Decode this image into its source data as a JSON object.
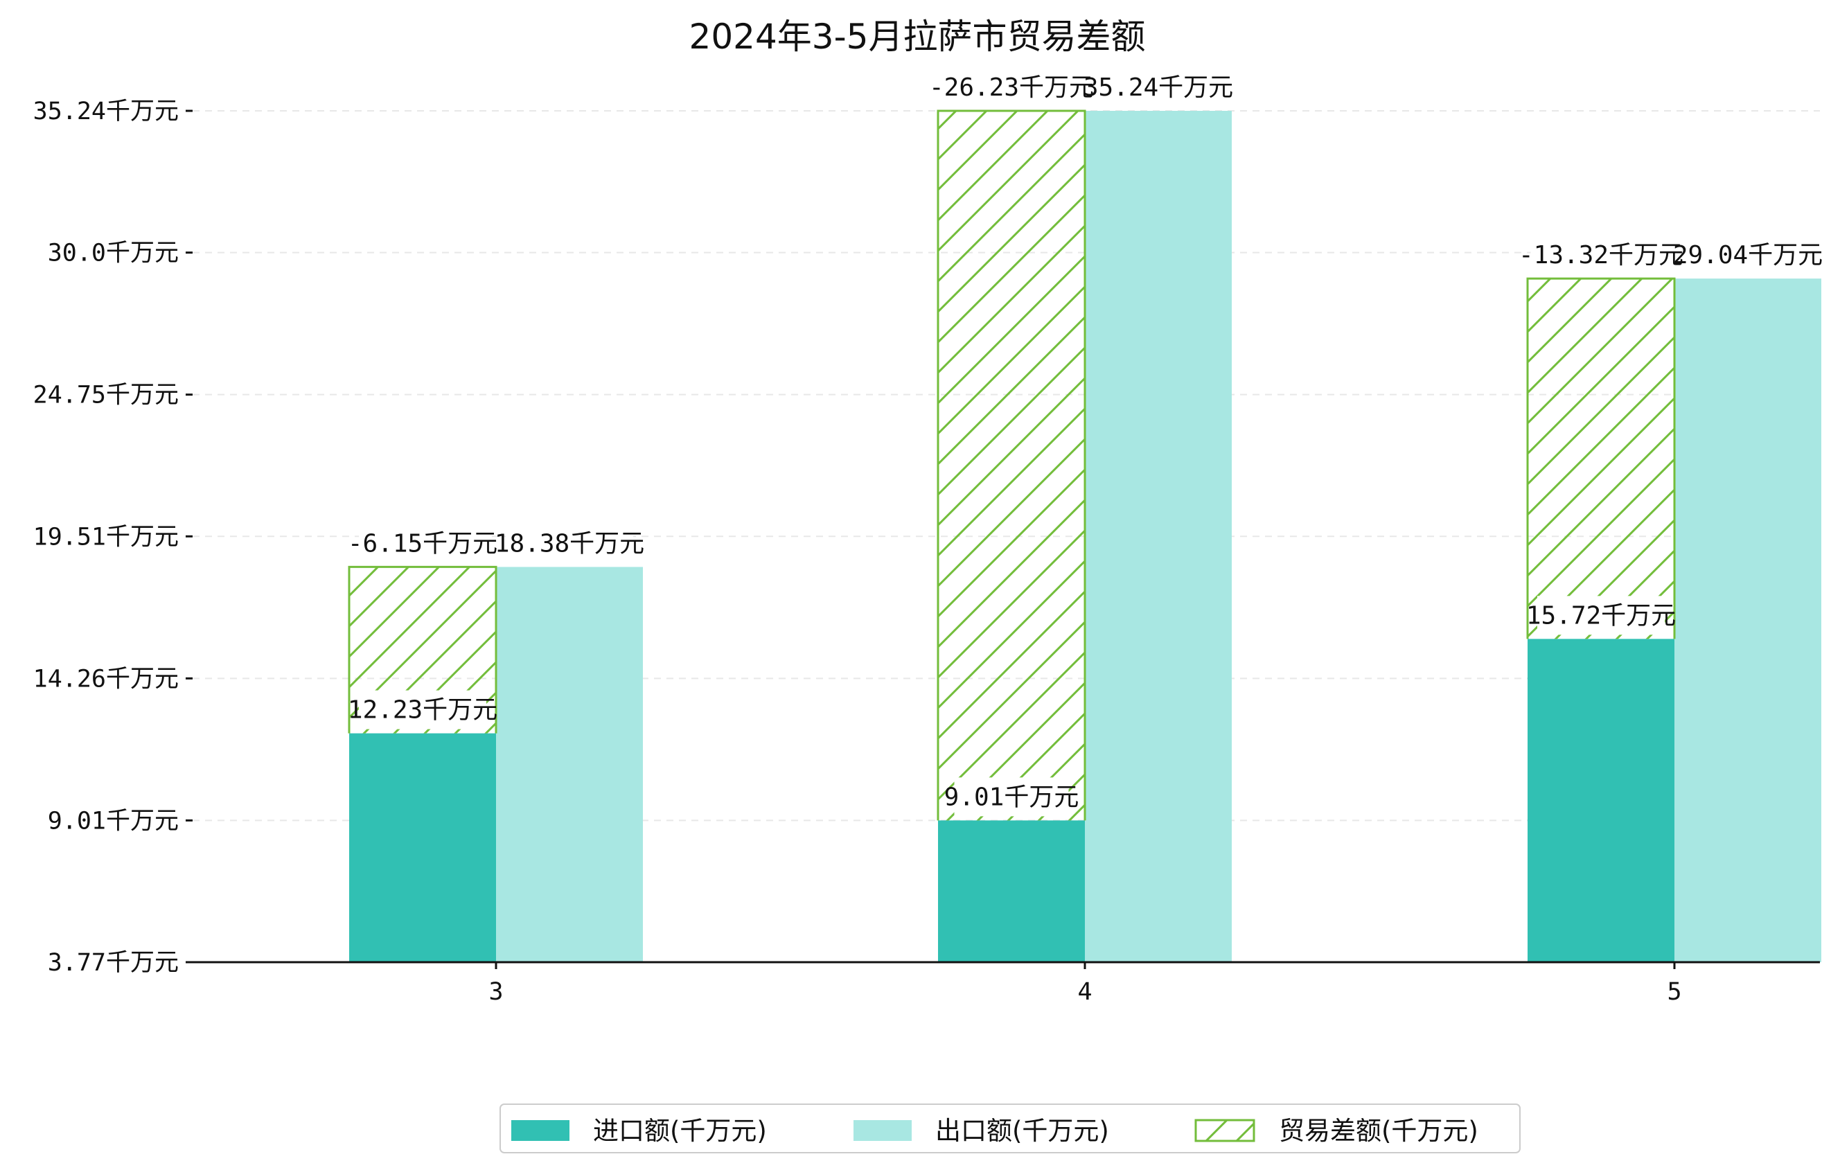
{
  "colors": {
    "import": "#31c0b3",
    "export": "#a8e7e2",
    "balance": "#73bd3b"
  },
  "chart_data": {
    "type": "bar",
    "title": "2024年3-5月拉萨市贸易差额",
    "xlabel": "",
    "ylabel": "",
    "categories": [
      "3",
      "4",
      "5"
    ],
    "y_axis": {
      "ylim": [
        3.77,
        35.24
      ],
      "ticks": [
        3.77,
        9.01,
        14.26,
        19.51,
        24.75,
        30.0,
        35.24
      ],
      "tick_labels": [
        "3.77千万元",
        "9.01千万元",
        "14.26千万元",
        "19.51千万元",
        "24.75千万元",
        "30.0千万元",
        "35.24千万元"
      ]
    },
    "grid": true,
    "legend_position": "bottom-center",
    "series": [
      {
        "name": "进口额(千万元)",
        "values": [
          12.23,
          9.01,
          15.72
        ],
        "labels": [
          "12.23千万元",
          "9.01千万元",
          "15.72千万元"
        ]
      },
      {
        "name": "出口额(千万元)",
        "values": [
          18.38,
          35.24,
          29.04
        ],
        "labels": [
          "18.38千万元",
          "35.24千万元",
          "29.04千万元"
        ]
      },
      {
        "name": "贸易差额(千万元)",
        "values": [
          -6.15,
          -26.23,
          -13.32
        ],
        "labels": [
          "-6.15千万元",
          "-26.23千万元",
          "-13.32千万元"
        ]
      }
    ]
  }
}
